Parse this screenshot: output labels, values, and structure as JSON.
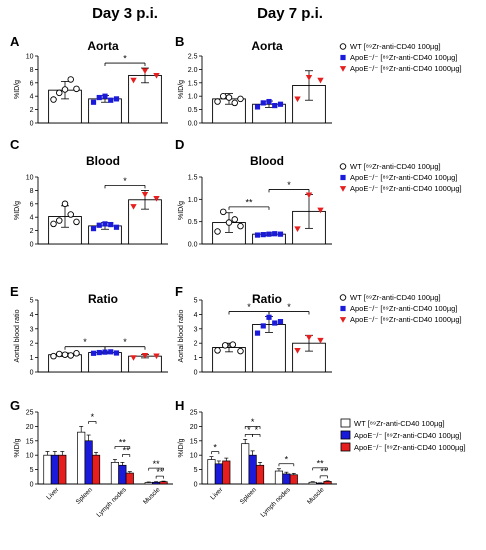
{
  "headers": [
    "Day 3 p.i.",
    "Day 7 p.i."
  ],
  "colors": {
    "wt": "#ffffff",
    "apoe": "#1a1adb",
    "apoe_high": "#e61e1e",
    "axis": "#000000"
  },
  "legend_scatter": [
    {
      "label": "WT [⁸⁹Zr-anti-CD40 100µg]",
      "marker": "circle"
    },
    {
      "label": "ApoE⁻/⁻ [⁸⁹Zr-anti-CD40 100µg]",
      "marker": "square"
    },
    {
      "label": "ApoE⁻/⁻ [⁸⁹Zr-anti-CD40 1000µg]",
      "marker": "triangle"
    }
  ],
  "chart_data": [
    {
      "panel": "A",
      "type": "bar",
      "title": "Aorta",
      "ylabel": "%ID/g",
      "ylim": [
        0,
        10
      ],
      "yticks": [
        0,
        2,
        4,
        6,
        8,
        10
      ],
      "means": [
        4.9,
        3.6,
        7.1
      ],
      "errors": [
        1.3,
        0.5,
        1.1
      ],
      "points": [
        [
          3.5,
          4.5,
          5.0,
          6.5,
          5.1
        ],
        [
          3.1,
          3.8,
          4.0,
          3.4,
          3.6
        ],
        [
          6.4,
          7.8,
          7.1
        ]
      ],
      "sig": [
        {
          "from": 1,
          "to": 2,
          "label": "*"
        }
      ]
    },
    {
      "panel": "B",
      "type": "bar",
      "title": "Aorta",
      "ylabel": "%ID/g",
      "ylim": [
        0,
        2.5
      ],
      "yticks": [
        0.0,
        0.5,
        1.0,
        1.5,
        2.0,
        2.5
      ],
      "means": [
        0.9,
        0.7,
        1.4
      ],
      "errors": [
        0.2,
        0.12,
        0.55
      ],
      "points": [
        [
          0.8,
          1.0,
          0.95,
          0.75,
          0.9
        ],
        [
          0.6,
          0.75,
          0.8,
          0.65,
          0.7
        ],
        [
          0.9,
          1.7,
          1.6
        ]
      ],
      "sig": []
    },
    {
      "panel": "C",
      "type": "bar",
      "title": "Blood",
      "ylabel": "%ID/g",
      "ylim": [
        0,
        10
      ],
      "yticks": [
        0,
        2,
        4,
        6,
        8,
        10
      ],
      "means": [
        4.1,
        2.7,
        6.6
      ],
      "errors": [
        1.6,
        0.5,
        1.4
      ],
      "points": [
        [
          3.0,
          3.5,
          6.0,
          4.4,
          3.3
        ],
        [
          2.3,
          2.8,
          3.0,
          2.9,
          2.5
        ],
        [
          5.6,
          7.4,
          6.8
        ]
      ],
      "sig": [
        {
          "from": 1,
          "to": 2,
          "label": "*"
        }
      ]
    },
    {
      "panel": "D",
      "type": "bar",
      "title": "Blood",
      "ylabel": "%ID/g",
      "ylim": [
        0,
        1.5
      ],
      "yticks": [
        0.0,
        0.5,
        1.0,
        1.5
      ],
      "means": [
        0.48,
        0.22,
        0.73
      ],
      "errors": [
        0.22,
        0.03,
        0.38
      ],
      "points": [
        [
          0.28,
          0.72,
          0.48,
          0.55,
          0.4
        ],
        [
          0.2,
          0.21,
          0.22,
          0.23,
          0.22
        ],
        [
          0.34,
          1.1,
          0.76
        ]
      ],
      "sig": [
        {
          "from": 0,
          "to": 1,
          "label": "**"
        },
        {
          "from": 1,
          "to": 2,
          "label": "*"
        }
      ]
    },
    {
      "panel": "E",
      "type": "bar",
      "title": "Ratio",
      "ylabel": "Aortal blood ratio",
      "ylim": [
        0,
        5
      ],
      "yticks": [
        0,
        1,
        2,
        3,
        4,
        5
      ],
      "means": [
        1.2,
        1.35,
        1.1
      ],
      "errors": [
        0.12,
        0.06,
        0.12
      ],
      "points": [
        [
          1.1,
          1.25,
          1.2,
          1.15,
          1.3
        ],
        [
          1.3,
          1.35,
          1.38,
          1.4,
          1.32
        ],
        [
          1.0,
          1.15,
          1.12
        ]
      ],
      "sig": [
        {
          "from": 0,
          "to": 1,
          "label": "*"
        },
        {
          "from": 1,
          "to": 2,
          "label": "*"
        }
      ]
    },
    {
      "panel": "F",
      "type": "bar",
      "title": "Ratio",
      "ylabel": "Aortal blood ratio",
      "ylim": [
        0,
        5
      ],
      "yticks": [
        0,
        1,
        2,
        3,
        4,
        5
      ],
      "means": [
        1.7,
        3.3,
        2.0
      ],
      "errors": [
        0.3,
        0.55,
        0.55
      ],
      "points": [
        [
          1.5,
          1.85,
          1.9,
          1.45
        ],
        [
          2.7,
          3.2,
          3.8,
          3.4,
          3.5
        ],
        [
          1.5,
          2.4,
          2.2
        ]
      ],
      "sig": [
        {
          "from": 0,
          "to": 1,
          "label": "*"
        },
        {
          "from": 1,
          "to": 2,
          "label": "*"
        }
      ]
    },
    {
      "panel": "G",
      "type": "bar",
      "title": "",
      "ylabel": "%ID/g",
      "ylim": [
        0,
        25
      ],
      "yticks": [
        0,
        5,
        10,
        15,
        20,
        25
      ],
      "categories": [
        "Liver",
        "Spleen",
        "Lymph nodes",
        "Muscle"
      ],
      "series": [
        {
          "values": [
            10.0,
            18.0,
            7.5,
            0.5
          ],
          "errors": [
            1.3,
            2.0,
            1.0,
            0.2
          ]
        },
        {
          "values": [
            10.0,
            15.0,
            6.5,
            0.6
          ],
          "errors": [
            1.3,
            2.0,
            1.0,
            0.2
          ]
        },
        {
          "values": [
            10.0,
            10.0,
            3.8,
            0.8
          ],
          "errors": [
            1.3,
            1.0,
            0.5,
            0.2
          ]
        }
      ],
      "sig": [
        {
          "cat": 1,
          "from": 1,
          "to": 2,
          "level": 0,
          "label": "*"
        },
        {
          "cat": 2,
          "from": 0,
          "to": 2,
          "level": 1,
          "label": "**"
        },
        {
          "cat": 2,
          "from": 1,
          "to": 2,
          "level": 0,
          "label": "**"
        },
        {
          "cat": 3,
          "from": 0,
          "to": 2,
          "level": 1,
          "label": "**"
        },
        {
          "cat": 3,
          "from": 1,
          "to": 2,
          "level": 0,
          "label": "**"
        }
      ]
    },
    {
      "panel": "H",
      "type": "bar",
      "title": "",
      "ylabel": "%ID/g",
      "ylim": [
        0,
        25
      ],
      "yticks": [
        0,
        5,
        10,
        15,
        20,
        25
      ],
      "categories": [
        "Liver",
        "Spleen",
        "Lymph nodes",
        "Muscle"
      ],
      "series": [
        {
          "values": [
            8.5,
            14.0,
            4.5,
            0.6
          ],
          "errors": [
            1.0,
            1.5,
            0.8,
            0.2
          ]
        },
        {
          "values": [
            7.0,
            10.0,
            3.5,
            0.3
          ],
          "errors": [
            1.0,
            1.5,
            0.6,
            0.1
          ]
        },
        {
          "values": [
            8.0,
            6.5,
            3.2,
            0.9
          ],
          "errors": [
            1.0,
            1.0,
            0.5,
            0.2
          ]
        }
      ],
      "sig": [
        {
          "cat": 0,
          "from": 0,
          "to": 1,
          "level": 0,
          "label": "*"
        },
        {
          "cat": 1,
          "from": 0,
          "to": 1,
          "level": 0,
          "label": "*"
        },
        {
          "cat": 1,
          "from": 1,
          "to": 2,
          "level": 0,
          "label": "*"
        },
        {
          "cat": 1,
          "from": 0,
          "to": 2,
          "level": 1,
          "label": "*"
        },
        {
          "cat": 2,
          "from": 0,
          "to": 2,
          "level": 0,
          "label": "*"
        },
        {
          "cat": 3,
          "from": 0,
          "to": 2,
          "level": 1,
          "label": "**"
        },
        {
          "cat": 3,
          "from": 1,
          "to": 2,
          "level": 0,
          "label": "**"
        }
      ]
    }
  ]
}
